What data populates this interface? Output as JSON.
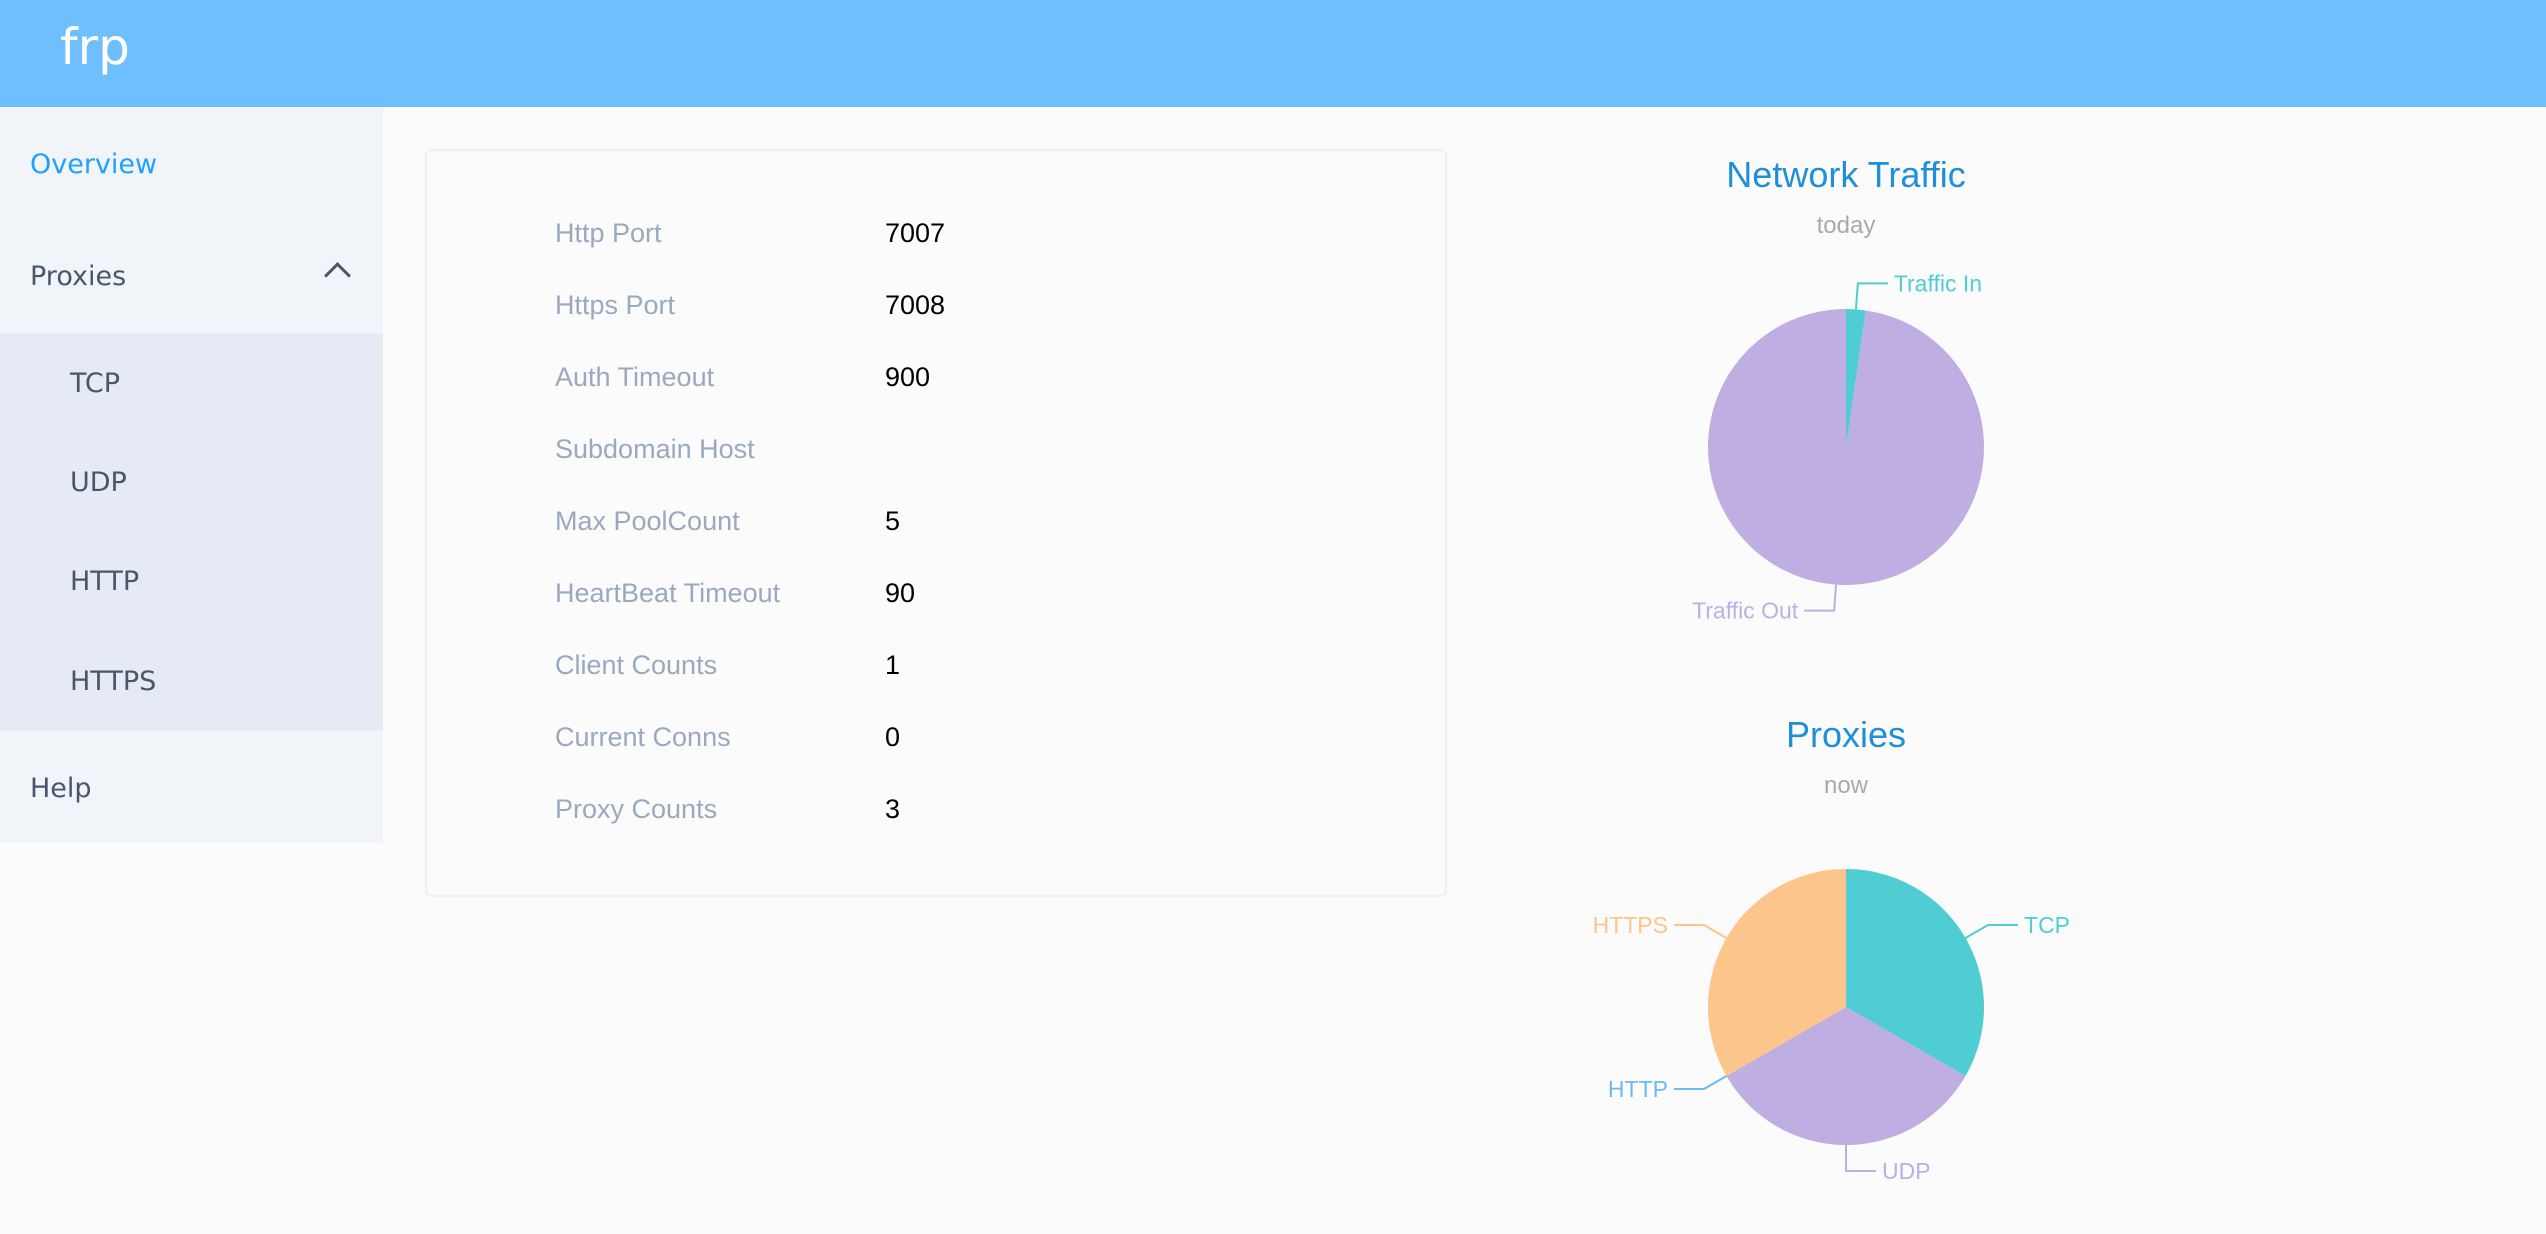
{
  "header": {
    "logo": "frp"
  },
  "sidebar": {
    "overview": "Overview",
    "proxies": "Proxies",
    "proxy_items": [
      "TCP",
      "UDP",
      "HTTP",
      "HTTPS"
    ],
    "help": "Help"
  },
  "server_info": [
    {
      "label": "Http Port",
      "value": "7007"
    },
    {
      "label": "Https Port",
      "value": "7008"
    },
    {
      "label": "Auth Timeout",
      "value": "900"
    },
    {
      "label": "Subdomain Host",
      "value": ""
    },
    {
      "label": "Max PoolCount",
      "value": "5"
    },
    {
      "label": "HeartBeat Timeout",
      "value": "90"
    },
    {
      "label": "Client Counts",
      "value": "1"
    },
    {
      "label": "Current Conns",
      "value": "0"
    },
    {
      "label": "Proxy Counts",
      "value": "3"
    }
  ],
  "chart_data": [
    {
      "type": "pie",
      "title": "Network Traffic",
      "subtitle": "today",
      "categories": [
        "Traffic In",
        "Traffic Out"
      ],
      "values": [
        2.3,
        97.7
      ],
      "colors": [
        "#4fcdd2",
        "#bfaee2"
      ]
    },
    {
      "type": "pie",
      "title": "Proxies",
      "subtitle": "now",
      "categories": [
        "TCP",
        "UDP",
        "HTTP",
        "HTTPS"
      ],
      "values": [
        1,
        1,
        0,
        1
      ],
      "colors": [
        "#4fcdd2",
        "#bfaee2",
        "#6fb9f0",
        "#fbc58b"
      ]
    }
  ]
}
